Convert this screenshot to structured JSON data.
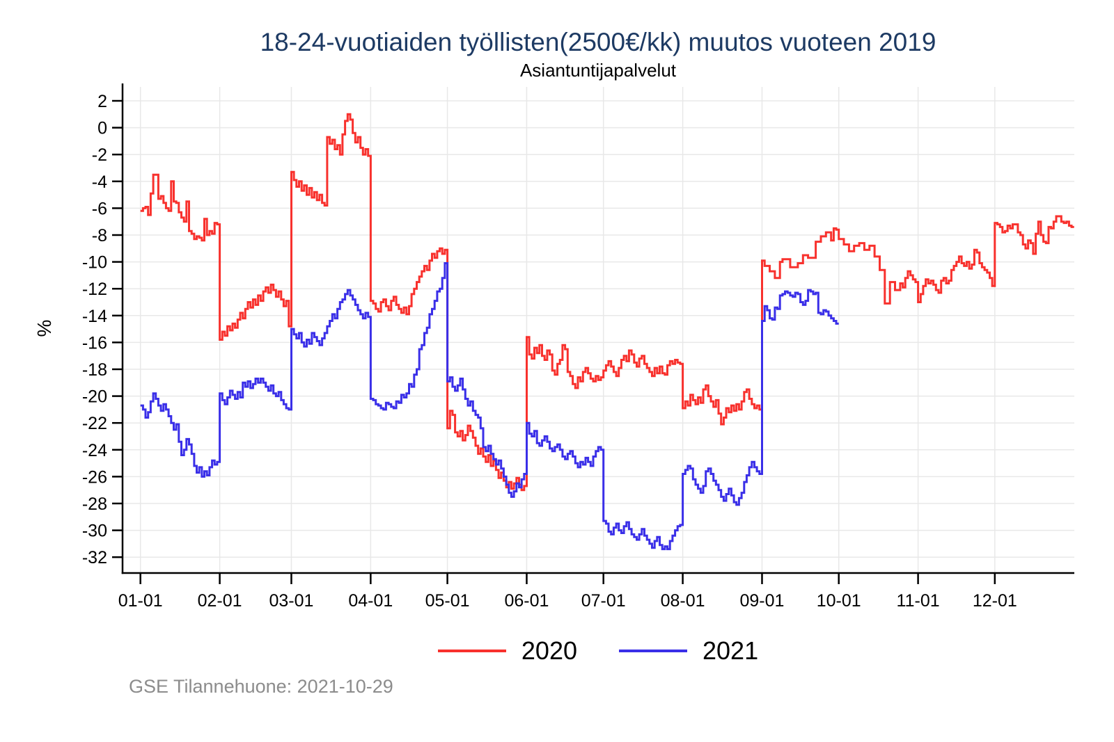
{
  "header": {
    "title": "18-24-vuotiaiden työllisten(2500€/kk) muutos vuoteen 2019",
    "subtitle": "Asiantuntijapalvelut"
  },
  "footer": {
    "text": "GSE Tilannehuone: 2021-10-29"
  },
  "chart_data": {
    "type": "line-step",
    "title": "18-24-vuotiaiden työllisten(2500€/kk) muutos vuoteen 2019",
    "subtitle": "Asiantuntijapalvelut",
    "ylabel": "%",
    "grid": true,
    "legend_position": "bottom-center",
    "x_tick_labels": [
      "01-01",
      "02-01",
      "03-01",
      "04-01",
      "05-01",
      "06-01",
      "07-01",
      "08-01",
      "09-01",
      "10-01",
      "11-01",
      "12-01"
    ],
    "y_ticks": [
      2,
      0,
      -2,
      -4,
      -6,
      -8,
      -10,
      -12,
      -14,
      -16,
      -18,
      -20,
      -22,
      -24,
      -26,
      -28,
      -30,
      -32
    ],
    "ylim": [
      -33.2,
      3.3
    ],
    "month_days": [
      31,
      28,
      31,
      30,
      31,
      30,
      31,
      31,
      30,
      31,
      30,
      31
    ],
    "axis_color": "#000000",
    "gridline_color": "#e8e8e8",
    "legend": [
      {
        "name": "2020",
        "color": "#f8312d"
      },
      {
        "name": "2021",
        "color": "#3a2fe8"
      }
    ],
    "series": [
      {
        "name": "2020",
        "color": "#f8312d",
        "start_day_of_year": 1,
        "daily_values": [
          -6.2,
          -6.0,
          -5.9,
          -6.5,
          -4.9,
          -3.5,
          -3.5,
          -5.3,
          -5.1,
          -5.6,
          -6.0,
          -6.2,
          -4.0,
          -5.5,
          -5.6,
          -6.3,
          -6.7,
          -7.0,
          -5.5,
          -7.7,
          -7.9,
          -8.3,
          -8.1,
          -8.2,
          -8.4,
          -6.8,
          -8.0,
          -7.7,
          -7.9,
          -7.1,
          -7.2,
          -15.8,
          -15.2,
          -15.5,
          -14.8,
          -15.1,
          -14.6,
          -14.9,
          -14.3,
          -13.8,
          -14.2,
          -13.5,
          -13.0,
          -13.4,
          -12.8,
          -13.2,
          -12.5,
          -12.9,
          -12.2,
          -11.9,
          -12.3,
          -11.7,
          -12.1,
          -12.6,
          -12.2,
          -12.8,
          -13.3,
          -12.9,
          -14.8,
          -3.3,
          -3.9,
          -4.4,
          -4.0,
          -4.7,
          -4.3,
          -5.0,
          -4.5,
          -5.2,
          -4.8,
          -5.4,
          -5.0,
          -5.6,
          -5.8,
          -0.7,
          -1.2,
          -0.9,
          -1.6,
          -1.3,
          -2.0,
          -0.5,
          0.5,
          1.0,
          0.6,
          -0.4,
          -1.1,
          -0.7,
          -1.5,
          -2.0,
          -1.6,
          -2.1,
          -12.9,
          -13.1,
          -13.5,
          -13.7,
          -13.0,
          -12.8,
          -13.3,
          -13.6,
          -12.9,
          -12.6,
          -13.2,
          -13.5,
          -13.8,
          -13.4,
          -13.9,
          -13.3,
          -12.4,
          -12.0,
          -11.5,
          -11.1,
          -10.7,
          -10.3,
          -10.6,
          -9.9,
          -9.4,
          -9.7,
          -9.2,
          -9.0,
          -9.4,
          -9.1,
          -22.4,
          -21.1,
          -21.4,
          -22.7,
          -23.0,
          -22.6,
          -23.3,
          -22.9,
          -22.2,
          -22.6,
          -23.1,
          -23.7,
          -24.3,
          -23.9,
          -24.5,
          -24.9,
          -24.4,
          -25.2,
          -24.8,
          -25.5,
          -26.1,
          -25.7,
          -26.3,
          -26.8,
          -26.4,
          -26.9,
          -26.5,
          -26.1,
          -26.6,
          -27.0,
          -26.7,
          -15.6,
          -16.9,
          -17.2,
          -16.4,
          -16.8,
          -16.2,
          -17.0,
          -17.3,
          -16.6,
          -16.9,
          -18.1,
          -18.4,
          -17.6,
          -17.3,
          -16.2,
          -16.5,
          -18.2,
          -18.5,
          -19.1,
          -19.4,
          -18.6,
          -18.9,
          -18.2,
          -17.9,
          -18.3,
          -18.7,
          -18.9,
          -18.5,
          -18.8,
          -18.6,
          -18.1,
          -17.7,
          -17.4,
          -17.8,
          -18.2,
          -18.5,
          -17.9,
          -17.3,
          -17.0,
          -17.4,
          -16.6,
          -16.9,
          -17.5,
          -17.8,
          -17.2,
          -17.0,
          -17.6,
          -17.9,
          -18.2,
          -18.5,
          -17.9,
          -18.3,
          -17.8,
          -18.3,
          -18.4,
          -17.7,
          -17.4,
          -17.6,
          -17.3,
          -17.5,
          -17.6,
          -20.9,
          -20.4,
          -20.7,
          -19.9,
          -20.3,
          -20.6,
          -20.1,
          -20.5,
          -19.5,
          -19.2,
          -20.0,
          -20.4,
          -20.8,
          -20.3,
          -21.3,
          -22.1,
          -21.6,
          -20.9,
          -21.2,
          -20.7,
          -21.1,
          -20.6,
          -21.0,
          -20.4,
          -19.7,
          -19.5,
          -20.2,
          -20.6,
          -20.9,
          -20.7,
          -21.0,
          -9.9,
          -10.3,
          -10.3,
          -10.7,
          -10.7,
          -11.2,
          -11.2,
          -10.0,
          -9.8,
          -9.8,
          -9.8,
          -10.4,
          -10.4,
          -10.4,
          -10.1,
          -10.1,
          -9.5,
          -9.5,
          -9.7,
          -9.7,
          -9.7,
          -8.5,
          -8.5,
          -8.1,
          -8.1,
          -7.8,
          -7.8,
          -8.4,
          -7.5,
          -7.6,
          -8.3,
          -8.3,
          -8.7,
          -8.7,
          -9.2,
          -9.2,
          -8.8,
          -8.8,
          -8.6,
          -8.6,
          -9.1,
          -9.1,
          -8.8,
          -8.8,
          -9.6,
          -9.6,
          -10.6,
          -10.6,
          -13.1,
          -13.1,
          -11.5,
          -11.5,
          -12.1,
          -12.1,
          -11.6,
          -11.9,
          -11.2,
          -10.7,
          -11.0,
          -11.3,
          -11.5,
          -13.0,
          -12.4,
          -11.8,
          -11.3,
          -11.6,
          -11.4,
          -11.7,
          -12.1,
          -12.3,
          -11.4,
          -11.2,
          -11.6,
          -11.4,
          -10.6,
          -10.3,
          -10.0,
          -9.6,
          -10.1,
          -10.3,
          -10.0,
          -10.5,
          -10.2,
          -9.1,
          -9.3,
          -10.1,
          -10.4,
          -10.6,
          -10.8,
          -11.2,
          -11.8,
          -7.1,
          -7.2,
          -7.4,
          -7.8,
          -7.7,
          -7.3,
          -7.5,
          -7.2,
          -7.2,
          -7.8,
          -8.0,
          -8.7,
          -9.0,
          -8.4,
          -8.6,
          -9.4,
          -7.9,
          -7.0,
          -8.0,
          -8.5,
          -8.6,
          -7.4,
          -7.5,
          -7.0,
          -6.6,
          -6.6,
          -7.0,
          -7.1,
          -7.0,
          -7.3,
          -7.4
        ]
      },
      {
        "name": "2021",
        "color": "#3a2fe8",
        "start_day_of_year": 1,
        "daily_values": [
          -20.7,
          -21.0,
          -21.6,
          -21.2,
          -20.4,
          -19.8,
          -20.2,
          -20.7,
          -21.1,
          -20.6,
          -21.0,
          -21.5,
          -22.0,
          -22.5,
          -22.1,
          -23.4,
          -24.4,
          -24.0,
          -23.2,
          -23.6,
          -24.3,
          -25.2,
          -25.7,
          -25.3,
          -26.0,
          -25.6,
          -25.9,
          -25.3,
          -24.8,
          -25.1,
          -24.9,
          -19.8,
          -20.3,
          -20.6,
          -20.1,
          -19.6,
          -19.9,
          -20.2,
          -19.7,
          -20.1,
          -19.0,
          -19.3,
          -18.9,
          -19.4,
          -19.1,
          -18.7,
          -19.0,
          -18.7,
          -19.0,
          -19.3,
          -19.6,
          -19.2,
          -19.8,
          -20.0,
          -19.7,
          -20.3,
          -20.6,
          -20.9,
          -21.0,
          -15.0,
          -15.4,
          -15.7,
          -15.3,
          -16.0,
          -16.3,
          -15.8,
          -16.1,
          -15.3,
          -15.6,
          -15.9,
          -16.2,
          -15.7,
          -15.3,
          -14.8,
          -14.4,
          -13.9,
          -14.2,
          -13.5,
          -13.0,
          -12.8,
          -12.4,
          -12.1,
          -12.5,
          -12.8,
          -13.2,
          -13.6,
          -13.9,
          -14.2,
          -13.8,
          -14.1,
          -20.2,
          -20.3,
          -20.6,
          -20.7,
          -20.9,
          -21.0,
          -20.5,
          -20.6,
          -20.8,
          -20.9,
          -20.4,
          -20.5,
          -19.9,
          -20.1,
          -19.8,
          -19.1,
          -19.3,
          -18.4,
          -18.0,
          -16.5,
          -16.2,
          -15.3,
          -14.9,
          -13.9,
          -13.5,
          -12.9,
          -12.2,
          -12.0,
          -11.2,
          -10.1,
          -18.9,
          -18.6,
          -19.3,
          -19.6,
          -19.2,
          -18.7,
          -19.5,
          -20.2,
          -20.7,
          -20.4,
          -21.1,
          -21.4,
          -21.6,
          -22.4,
          -23.8,
          -24.1,
          -23.7,
          -24.3,
          -24.7,
          -25.1,
          -24.8,
          -25.4,
          -26.0,
          -26.6,
          -27.2,
          -27.5,
          -27.1,
          -26.5,
          -26.8,
          -26.2,
          -25.8,
          -22.0,
          -22.8,
          -23.0,
          -22.6,
          -23.5,
          -23.7,
          -23.3,
          -23.0,
          -23.4,
          -23.9,
          -24.1,
          -23.8,
          -23.6,
          -24.0,
          -24.5,
          -24.7,
          -24.3,
          -24.1,
          -24.5,
          -25.0,
          -25.3,
          -24.9,
          -25.1,
          -24.6,
          -24.9,
          -25.2,
          -24.5,
          -24.1,
          -23.8,
          -24.0,
          -29.3,
          -29.5,
          -30.1,
          -30.3,
          -29.8,
          -29.5,
          -30.0,
          -30.2,
          -29.7,
          -29.4,
          -29.9,
          -30.3,
          -30.5,
          -30.7,
          -30.3,
          -29.9,
          -30.4,
          -30.7,
          -31.0,
          -31.3,
          -30.8,
          -30.5,
          -31.1,
          -31.4,
          -31.2,
          -31.4,
          -30.8,
          -30.4,
          -30.0,
          -29.7,
          -29.6,
          -25.8,
          -25.5,
          -25.2,
          -25.4,
          -26.2,
          -26.6,
          -26.9,
          -27.2,
          -26.7,
          -25.6,
          -25.4,
          -25.8,
          -26.3,
          -26.6,
          -27.0,
          -27.5,
          -27.8,
          -27.3,
          -26.9,
          -27.4,
          -27.9,
          -28.1,
          -27.6,
          -27.2,
          -26.4,
          -25.9,
          -25.3,
          -24.9,
          -25.3,
          -25.6,
          -25.8,
          -14.4,
          -13.3,
          -13.6,
          -14.2,
          -14.3,
          -13.4,
          -13.5,
          -12.5,
          -12.4,
          -12.2,
          -12.3,
          -12.5,
          -12.6,
          -12.3,
          -12.4,
          -13.0,
          -13.2,
          -12.9,
          -12.1,
          -12.2,
          -12.4,
          -12.3,
          -13.8,
          -13.9,
          -13.6,
          -13.7,
          -14.0,
          -14.2,
          -14.4,
          -14.6
        ]
      }
    ]
  }
}
